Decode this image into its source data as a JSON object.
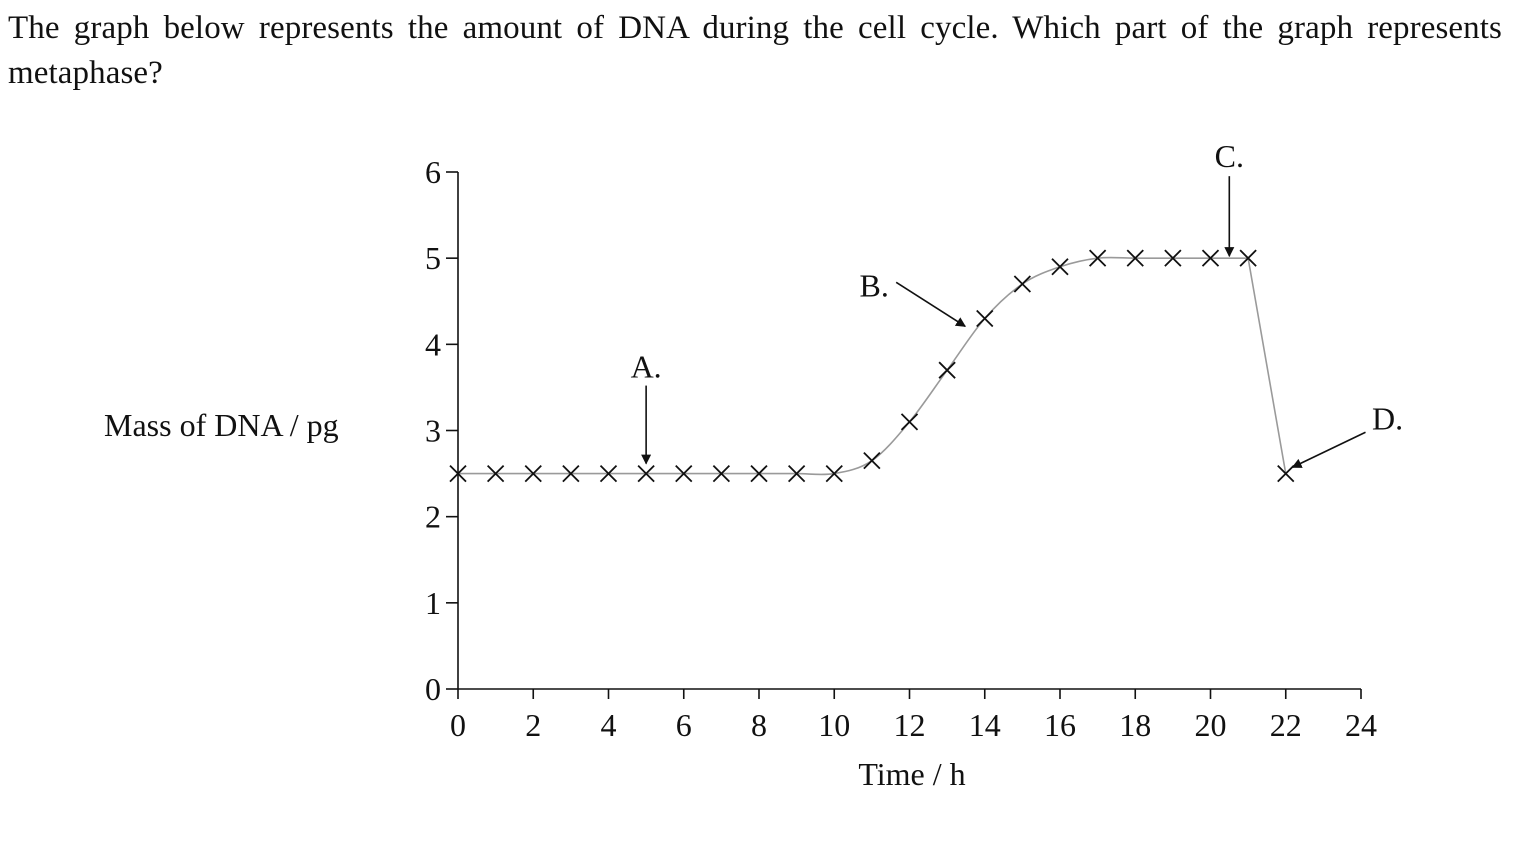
{
  "question": {
    "text": "The graph below represents the amount of DNA during the cell cycle.  Which part of the graph represents metaphase?"
  },
  "chart_data": {
    "type": "line",
    "title": "",
    "xlabel": "Time / h",
    "ylabel": "Mass of DNA / pg",
    "xlim": [
      0,
      24
    ],
    "ylim": [
      0,
      6
    ],
    "x_ticks": [
      0,
      2,
      4,
      6,
      8,
      10,
      12,
      14,
      16,
      18,
      20,
      22,
      24
    ],
    "y_ticks": [
      0,
      1,
      2,
      3,
      4,
      5,
      6
    ],
    "grid": false,
    "legend": "none",
    "marker": "x",
    "line_color": "#9a9a9a",
    "marker_color": "#111111",
    "points": [
      {
        "x": 0,
        "y": 2.5
      },
      {
        "x": 1,
        "y": 2.5
      },
      {
        "x": 2,
        "y": 2.5
      },
      {
        "x": 3,
        "y": 2.5
      },
      {
        "x": 4,
        "y": 2.5
      },
      {
        "x": 5,
        "y": 2.5
      },
      {
        "x": 6,
        "y": 2.5
      },
      {
        "x": 7,
        "y": 2.5
      },
      {
        "x": 8,
        "y": 2.5
      },
      {
        "x": 9,
        "y": 2.5
      },
      {
        "x": 10,
        "y": 2.5
      },
      {
        "x": 11,
        "y": 2.65
      },
      {
        "x": 12,
        "y": 3.1
      },
      {
        "x": 13,
        "y": 3.7
      },
      {
        "x": 14,
        "y": 4.3
      },
      {
        "x": 15,
        "y": 4.7
      },
      {
        "x": 16,
        "y": 4.9
      },
      {
        "x": 17,
        "y": 5.0
      },
      {
        "x": 18,
        "y": 5.0
      },
      {
        "x": 19,
        "y": 5.0
      },
      {
        "x": 20,
        "y": 5.0
      },
      {
        "x": 21,
        "y": 5.0
      },
      {
        "x": 22,
        "y": 2.5
      }
    ],
    "annotations": [
      {
        "label": "A.",
        "x": 5,
        "y": 2.5,
        "direction": "above"
      },
      {
        "label": "B.",
        "x": 13.4,
        "y": 4.0,
        "direction": "upper-left"
      },
      {
        "label": "C.",
        "x": 20.5,
        "y": 5.0,
        "direction": "above"
      },
      {
        "label": "D.",
        "x": 22.1,
        "y": 2.55,
        "direction": "upper-right"
      }
    ]
  }
}
